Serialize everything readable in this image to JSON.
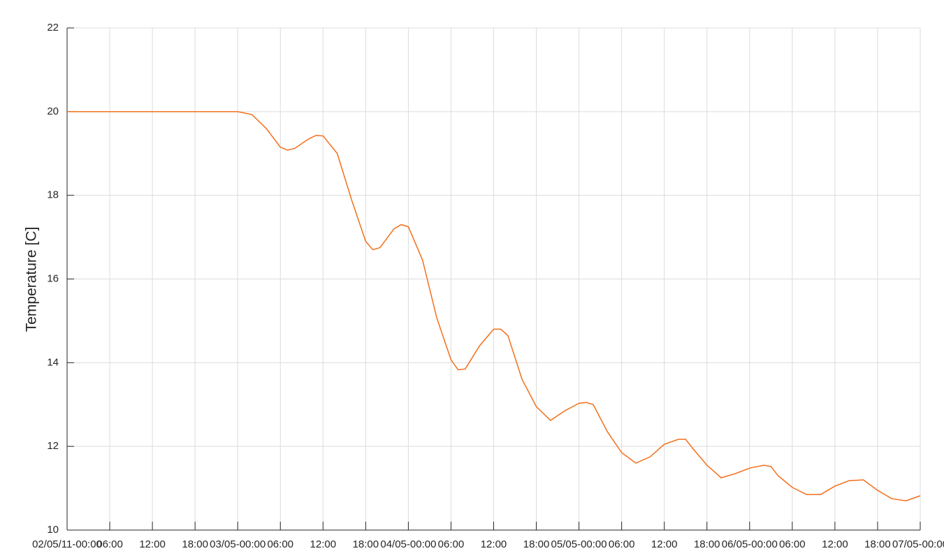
{
  "chart_data": {
    "type": "line",
    "y_label": "Temperature [C]",
    "color": "#f36f1b",
    "grid": true,
    "xlim": [
      0,
      120
    ],
    "xticks": [
      {
        "value": 0,
        "label": "02/05/11-00:00"
      },
      {
        "value": 6,
        "label": "06:00"
      },
      {
        "value": 12,
        "label": "12:00"
      },
      {
        "value": 18,
        "label": "18:00"
      },
      {
        "value": 24,
        "label": "03/05-00:00"
      },
      {
        "value": 30,
        "label": "06:00"
      },
      {
        "value": 36,
        "label": "12:00"
      },
      {
        "value": 42,
        "label": "18:00"
      },
      {
        "value": 48,
        "label": "04/05-00:00"
      },
      {
        "value": 54,
        "label": "06:00"
      },
      {
        "value": 60,
        "label": "12:00"
      },
      {
        "value": 66,
        "label": "18:00"
      },
      {
        "value": 72,
        "label": "05/05-00:00"
      },
      {
        "value": 78,
        "label": "06:00"
      },
      {
        "value": 84,
        "label": "12:00"
      },
      {
        "value": 90,
        "label": "18:00"
      },
      {
        "value": 96,
        "label": "06/05-00:00"
      },
      {
        "value": 102,
        "label": "06:00"
      },
      {
        "value": 108,
        "label": "12:00"
      },
      {
        "value": 114,
        "label": "18:00"
      },
      {
        "value": 120,
        "label": "07/05-00:00"
      }
    ],
    "ylim": [
      10,
      22
    ],
    "yticks": [
      10,
      12,
      14,
      16,
      18,
      20,
      22
    ],
    "x": [
      0,
      6,
      12,
      18,
      22,
      24,
      26,
      28,
      30,
      31,
      32,
      34,
      35,
      36,
      38,
      40,
      42,
      43,
      44,
      46,
      47,
      48,
      50,
      52,
      54,
      55,
      56,
      58,
      60,
      61,
      62,
      64,
      66,
      68,
      70,
      72,
      73,
      74,
      76,
      78,
      80,
      82,
      84,
      86,
      87,
      88,
      90,
      92,
      94,
      96,
      98,
      99,
      100,
      102,
      104,
      106,
      108,
      110,
      112,
      114,
      116,
      118,
      120
    ],
    "values": [
      20.0,
      20.0,
      20.0,
      20.0,
      20.0,
      20.0,
      19.93,
      19.6,
      19.15,
      19.08,
      19.12,
      19.35,
      19.43,
      19.42,
      19.0,
      17.9,
      16.9,
      16.7,
      16.75,
      17.2,
      17.3,
      17.25,
      16.45,
      15.07,
      14.07,
      13.83,
      13.85,
      14.4,
      14.8,
      14.8,
      14.65,
      13.6,
      12.95,
      12.62,
      12.85,
      13.03,
      13.05,
      13.0,
      12.35,
      11.85,
      11.6,
      11.75,
      12.05,
      12.17,
      12.17,
      11.95,
      11.55,
      11.25,
      11.35,
      11.48,
      11.55,
      11.52,
      11.3,
      11.02,
      10.85,
      10.85,
      11.05,
      11.18,
      11.2,
      10.95,
      10.75,
      10.7,
      10.82
    ]
  }
}
